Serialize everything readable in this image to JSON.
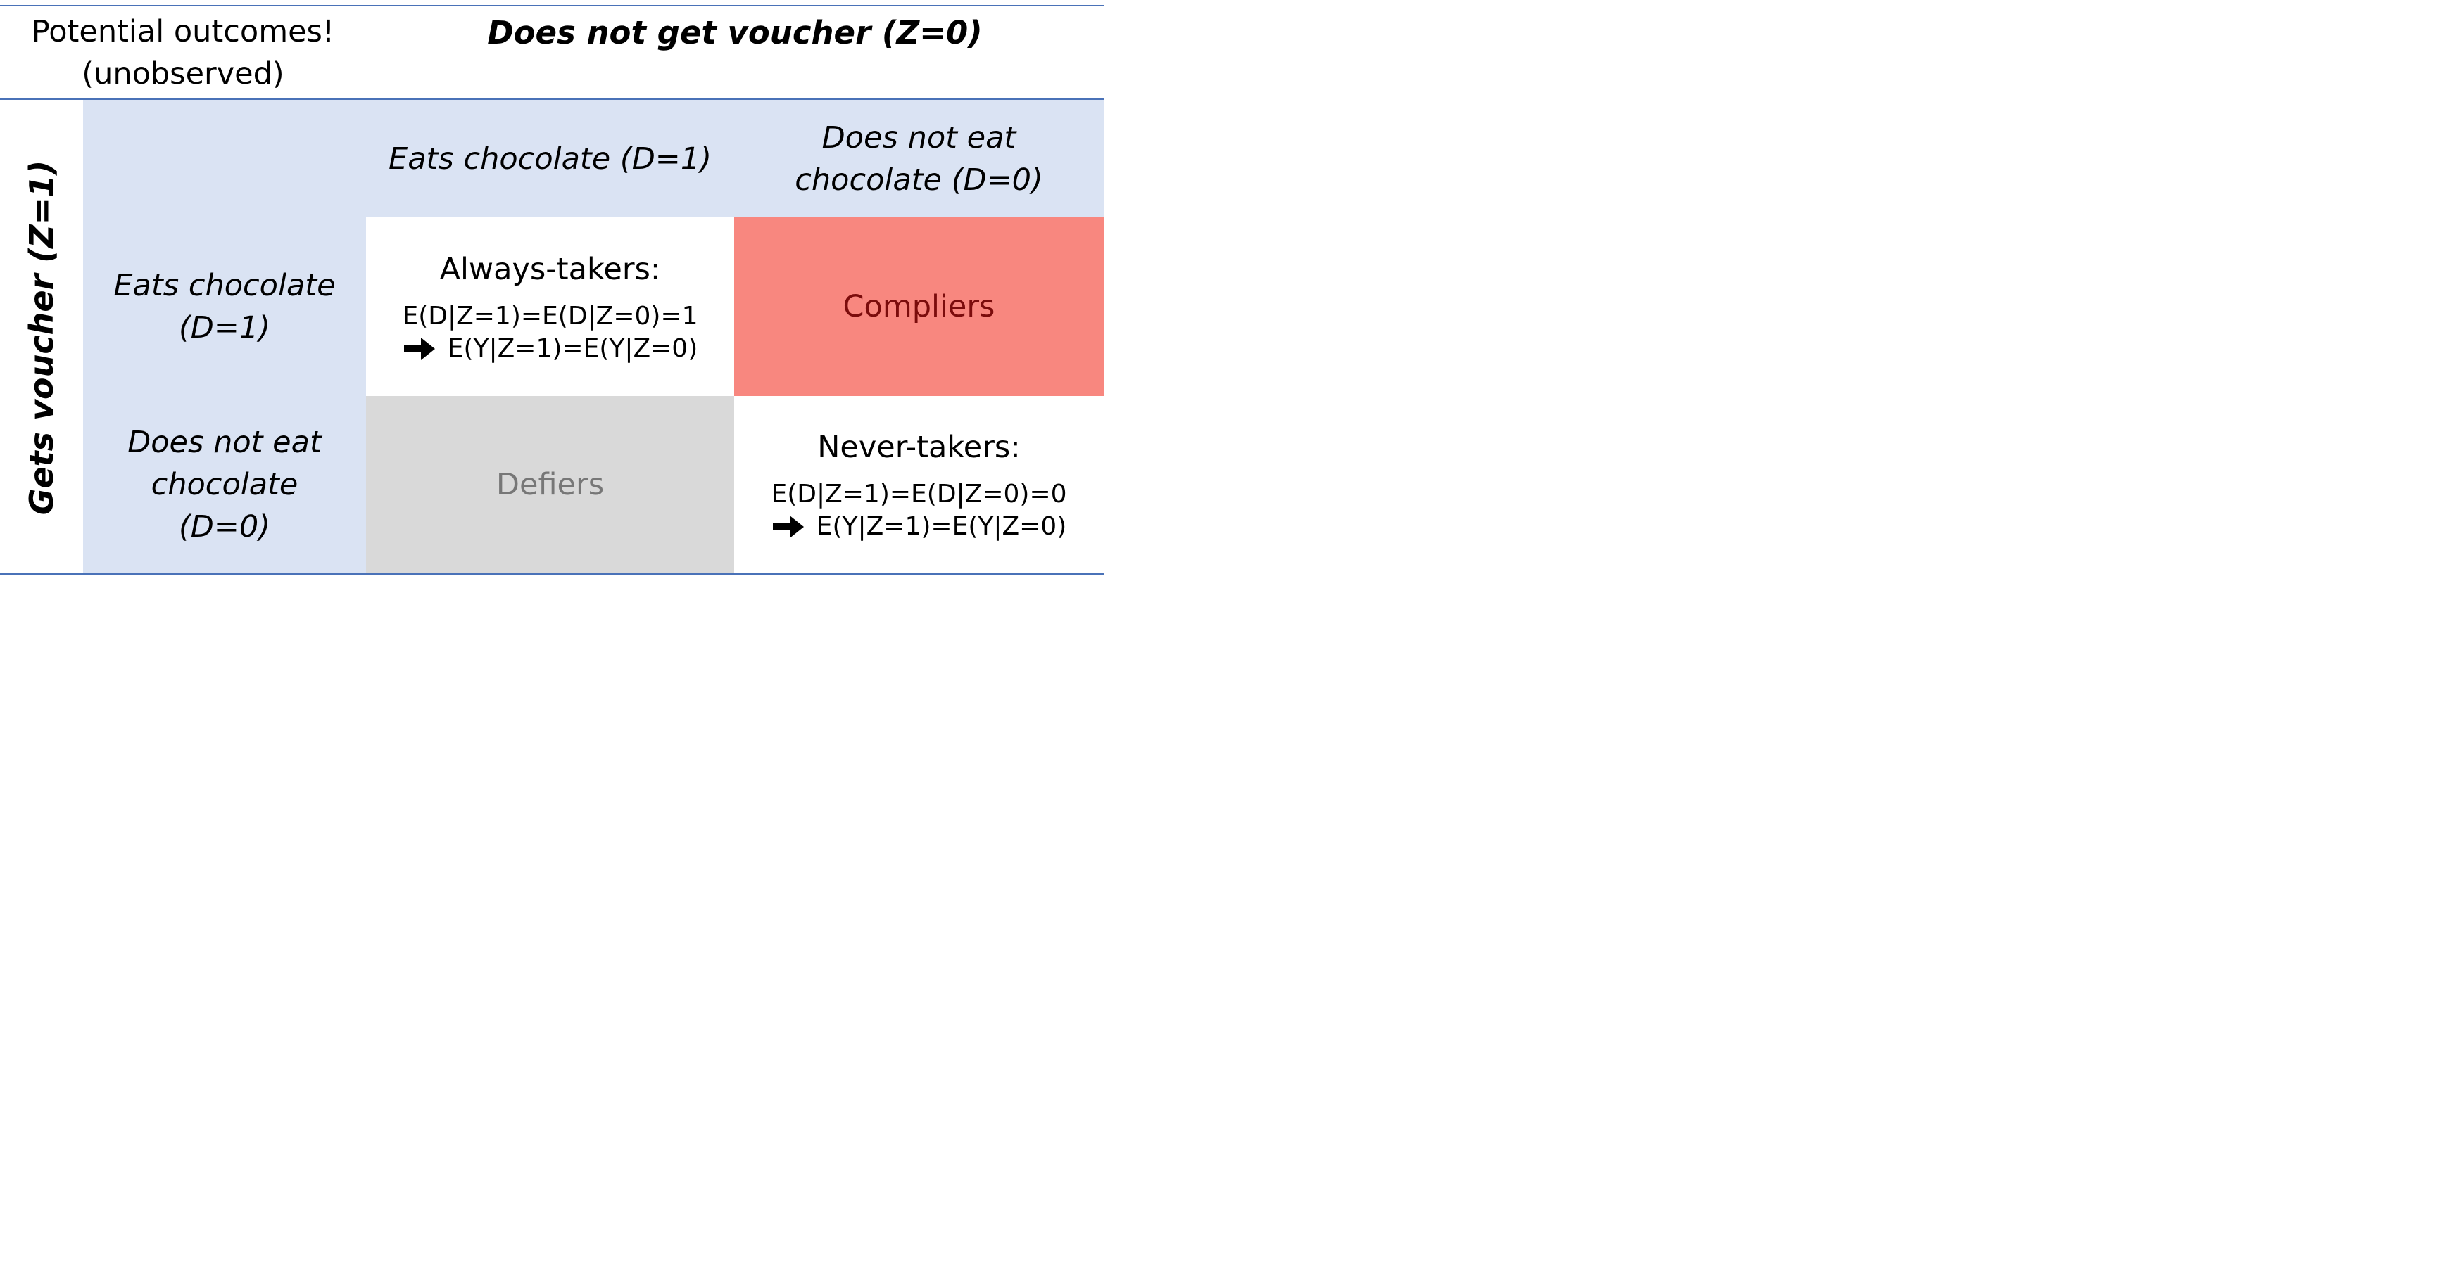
{
  "header": {
    "corner_line1": "Potential outcomes!",
    "corner_line2": "(unobserved)",
    "z0_title": "Does not get voucher (Z=0)"
  },
  "row_header": {
    "z1_title": "Gets voucher (Z=1)"
  },
  "columns": {
    "eats_line1": "Eats chocolate (D=1)",
    "noeat_line1": "Does not eat",
    "noeat_line2": "chocolate (D=0)"
  },
  "rows": {
    "eats_line1": "Eats chocolate",
    "eats_line2": "(D=1)",
    "noeat_line1": "Does not eat",
    "noeat_line2": "chocolate",
    "noeat_line3": "(D=0)"
  },
  "cells": {
    "always_takers": {
      "title": "Always-takers:",
      "eq1": "E(D|Z=1)=E(D|Z=0)=1",
      "eq2": "E(Y|Z=1)=E(Y|Z=0)"
    },
    "compliers": {
      "title": "Compliers"
    },
    "defiers": {
      "title": "Defiers"
    },
    "never_takers": {
      "title": "Never-takers:",
      "eq1": "E(D|Z=1)=E(D|Z=0)=0",
      "eq2": "E(Y|Z=1)=E(Y|Z=0)"
    }
  },
  "colors": {
    "header_fill": "#dae3f3",
    "compliers_fill": "#f8877f",
    "compliers_text": "#7b0c0c",
    "defiers_fill": "#d9d9d9",
    "defiers_text": "#777777",
    "rule": "#4a72b8"
  },
  "icons": {
    "implies": "right-arrow-icon"
  }
}
